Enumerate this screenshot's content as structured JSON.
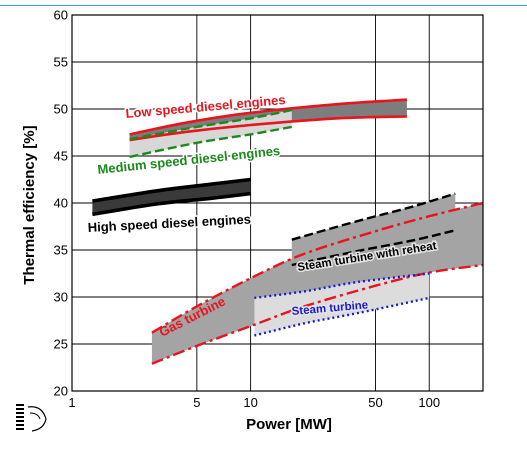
{
  "chart_data": {
    "type": "area",
    "title": "",
    "xlabel": "Power  [MW]",
    "ylabel": "Thermal efficiency   [%]",
    "xscale": "log",
    "xlim": [
      1,
      200
    ],
    "ylim": [
      20,
      60
    ],
    "xticks": [
      1,
      5,
      10,
      50,
      100
    ],
    "yticks": [
      20,
      25,
      30,
      35,
      40,
      45,
      50,
      55,
      60
    ],
    "grid": "major gridlines on both axes",
    "series": [
      {
        "name": "Low speed diesel engines",
        "color": "#e8141e",
        "line": "solid",
        "upper": [
          [
            2.1,
            47.3
          ],
          [
            4.5,
            48.6
          ],
          [
            10,
            49.6
          ],
          [
            30,
            50.5
          ],
          [
            75,
            51.0
          ]
        ],
        "lower": [
          [
            2.1,
            46.7
          ],
          [
            4.5,
            47.6
          ],
          [
            10,
            48.3
          ],
          [
            30,
            49.0
          ],
          [
            75,
            49.2
          ]
        ]
      },
      {
        "name": "Medium speed diesel engines",
        "color": "#1a8a1a",
        "line": "dashed",
        "upper": [
          [
            2.1,
            46.8
          ],
          [
            5,
            48.1
          ],
          [
            10,
            49.0
          ],
          [
            17,
            49.9
          ]
        ],
        "lower": [
          [
            2.1,
            44.9
          ],
          [
            5,
            46.4
          ],
          [
            10,
            47.3
          ],
          [
            17,
            48.1
          ]
        ]
      },
      {
        "name": "High speed diesel engines",
        "color": "#000000",
        "line": "solid",
        "upper": [
          [
            1.3,
            40.2
          ],
          [
            3,
            41.3
          ],
          [
            6,
            42.0
          ],
          [
            10,
            42.5
          ]
        ],
        "lower": [
          [
            1.3,
            38.8
          ],
          [
            3,
            39.9
          ],
          [
            6,
            40.5
          ],
          [
            10,
            41.0
          ]
        ]
      },
      {
        "name": "Steam turbine with reheat",
        "color": "#000000",
        "line": "dashed",
        "upper": [
          [
            17,
            36.1
          ],
          [
            40,
            38.1
          ],
          [
            80,
            39.6
          ],
          [
            140,
            41.0
          ]
        ],
        "lower": [
          [
            17,
            33.4
          ],
          [
            40,
            34.9
          ],
          [
            80,
            36.0
          ],
          [
            140,
            37.1
          ]
        ]
      },
      {
        "name": "Gas turbine",
        "color": "#e8141e",
        "line": "dash-dot",
        "upper": [
          [
            2.8,
            26.2
          ],
          [
            5,
            29.0
          ],
          [
            10,
            32.0
          ],
          [
            20,
            34.6
          ],
          [
            50,
            37.0
          ],
          [
            100,
            38.6
          ],
          [
            200,
            40.0
          ]
        ],
        "lower": [
          [
            2.8,
            22.9
          ],
          [
            5,
            24.8
          ],
          [
            10,
            26.9
          ],
          [
            20,
            29.0
          ],
          [
            50,
            31.2
          ],
          [
            100,
            32.6
          ],
          [
            200,
            33.4
          ]
        ]
      },
      {
        "name": "Steam turbine",
        "color": "#1a1acc",
        "line": "dotted",
        "upper": [
          [
            10.5,
            29.9
          ],
          [
            20,
            30.6
          ],
          [
            40,
            31.6
          ],
          [
            100,
            32.5
          ]
        ],
        "lower": [
          [
            10.5,
            25.9
          ],
          [
            20,
            27.2
          ],
          [
            40,
            28.3
          ],
          [
            100,
            29.9
          ]
        ]
      }
    ]
  }
}
